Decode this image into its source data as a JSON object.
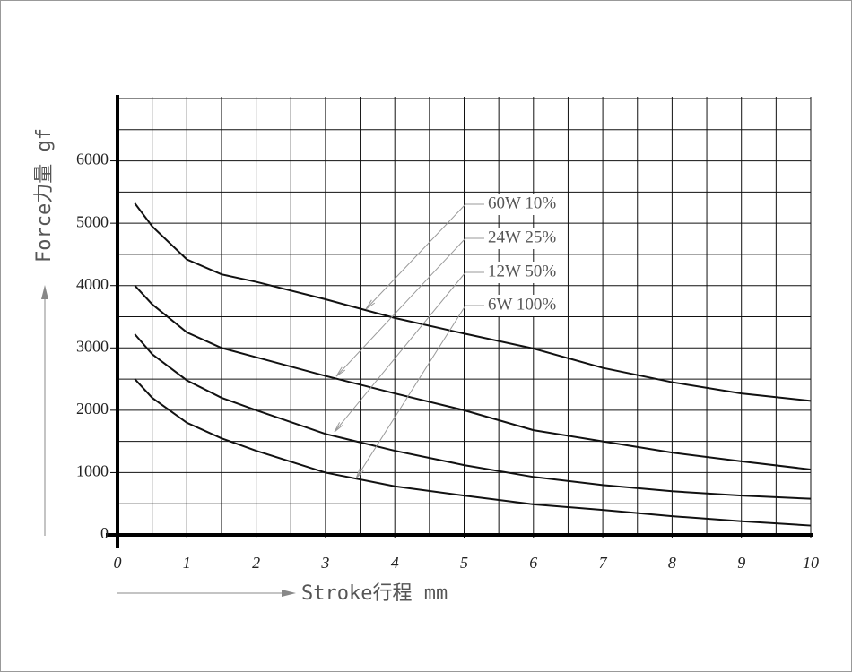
{
  "chart_data": {
    "type": "line",
    "x_label": "Stroke行程 mm",
    "y_label": "Force力量 gf",
    "x": [
      0.25,
      0.5,
      1,
      1.5,
      2,
      3,
      4,
      5,
      6,
      7,
      8,
      9,
      10
    ],
    "series": [
      {
        "name": "60W 10%",
        "color": "#111111",
        "values": [
          5320,
          4950,
          4420,
          4180,
          4060,
          3780,
          3480,
          3230,
          2990,
          2680,
          2450,
          2270,
          2150
        ]
      },
      {
        "name": "24W 25%",
        "color": "#111111",
        "values": [
          4000,
          3700,
          3250,
          3000,
          2850,
          2550,
          2270,
          2000,
          1680,
          1500,
          1320,
          1180,
          1050
        ]
      },
      {
        "name": "12W 50%",
        "color": "#111111",
        "values": [
          3220,
          2900,
          2480,
          2200,
          2000,
          1620,
          1350,
          1120,
          930,
          800,
          700,
          630,
          580
        ]
      },
      {
        "name": "6W 100%",
        "color": "#111111",
        "values": [
          2500,
          2200,
          1800,
          1550,
          1350,
          1000,
          780,
          630,
          490,
          400,
          300,
          220,
          150
        ]
      }
    ],
    "xlim": [
      0,
      10
    ],
    "xticks": [
      0,
      1,
      2,
      3,
      4,
      5,
      6,
      7,
      8,
      9,
      10
    ],
    "ylim": [
      0,
      7000
    ],
    "yticks": [
      0,
      1000,
      2000,
      3000,
      4000,
      5000,
      6000
    ],
    "grid": true,
    "xgrid_step": 0.5,
    "ygrid_step": 500
  }
}
